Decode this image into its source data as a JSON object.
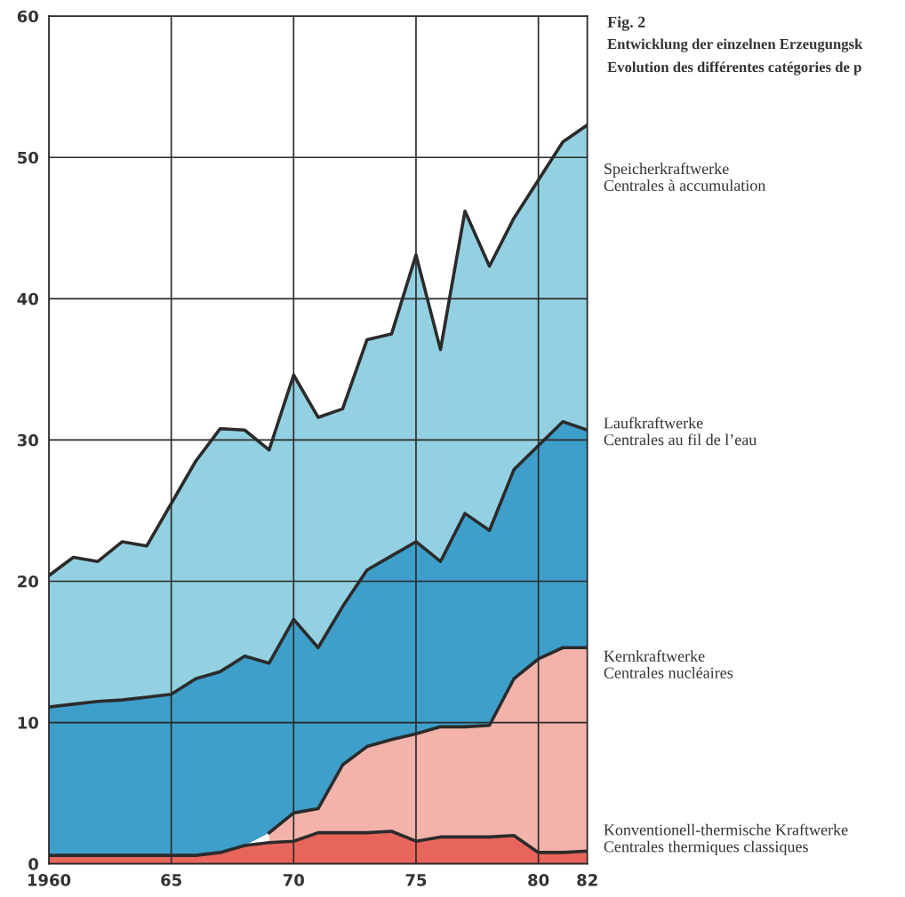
{
  "chart_data": {
    "type": "area",
    "stacked": true,
    "title": "Fig. 2",
    "subtitle": "Entwicklung der einzelnen Erzeugungsk\nEvolution des différentes catégories de p",
    "x": [
      1960,
      1961,
      1962,
      1963,
      1964,
      1965,
      1966,
      1967,
      1968,
      1969,
      1970,
      1971,
      1972,
      1973,
      1974,
      1975,
      1976,
      1977,
      1978,
      1979,
      1980,
      1981,
      1982
    ],
    "xlim": [
      1960,
      1982
    ],
    "xticks": [
      1960,
      {
        "value": 1965,
        "label": "65"
      },
      {
        "value": 1970,
        "label": "70"
      },
      {
        "value": 1975,
        "label": "75"
      },
      {
        "value": 1980,
        "label": "80"
      },
      {
        "value": 1982,
        "label": "82"
      }
    ],
    "ylim": [
      0,
      60
    ],
    "yticks": [
      0,
      10,
      20,
      30,
      40,
      50,
      60
    ],
    "grid": true,
    "legend": false,
    "series": [
      {
        "name": "Konventionell-thermische Kraftwerke\nCentrales thermiques classiques",
        "color": "#e8655c",
        "values": [
          0.6,
          0.6,
          0.6,
          0.6,
          0.6,
          0.6,
          0.6,
          0.8,
          1.3,
          1.5,
          1.6,
          2.2,
          2.2,
          2.2,
          2.3,
          1.6,
          1.9,
          1.9,
          1.9,
          2.0,
          0.8,
          0.8,
          0.9
        ]
      },
      {
        "name": "Kernkraftwerke\nCentrales nucléaires",
        "color": "#f3b2aa",
        "values": [
          null,
          null,
          null,
          null,
          null,
          null,
          null,
          null,
          null,
          0.7,
          2.0,
          1.7,
          4.8,
          6.1,
          6.5,
          7.6,
          7.8,
          7.8,
          7.9,
          11.1,
          13.7,
          14.5,
          14.4
        ]
      },
      {
        "name": "Laufkraftwerke\nCentrales au fil de l’eau",
        "color": "#3d9fca",
        "values": [
          10.5,
          10.7,
          10.9,
          11.0,
          11.2,
          11.4,
          12.5,
          12.8,
          13.4,
          12.0,
          13.7,
          11.4,
          11.2,
          12.5,
          13.0,
          13.6,
          11.7,
          15.1,
          13.8,
          14.8,
          15.1,
          16.0,
          15.4
        ]
      },
      {
        "name": "Speicherkraftwerke\nCentrales à accumulation",
        "color": "#93d1e2",
        "values": [
          9.3,
          10.4,
          9.9,
          11.2,
          10.7,
          13.5,
          15.4,
          17.2,
          16.0,
          15.1,
          17.3,
          16.3,
          14.0,
          16.3,
          15.7,
          20.3,
          15.0,
          21.4,
          18.7,
          17.8,
          18.8,
          19.8,
          21.6
        ]
      }
    ]
  }
}
